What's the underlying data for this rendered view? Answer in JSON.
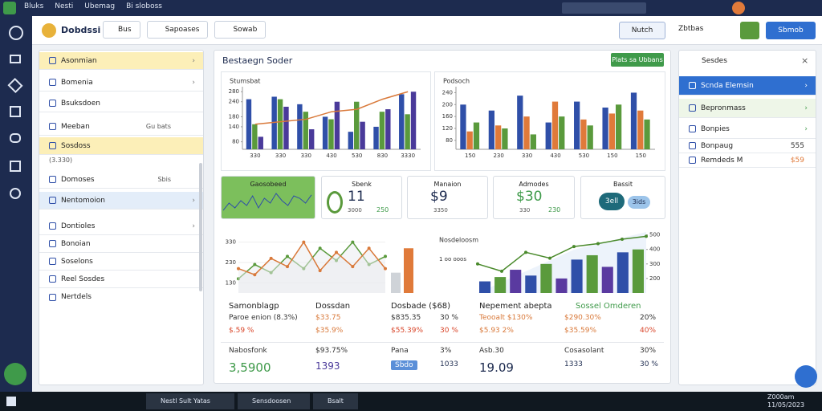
{
  "top_bar": {
    "items": [
      "Bluks",
      "Nesti",
      "Ubemag",
      "Bi sloboss"
    ]
  },
  "toolbar": {
    "brand": "Dobdssi",
    "tabs": [
      "Bus",
      "Sapoases",
      "Sowab"
    ],
    "button": "Nutch",
    "link": "Zbtbas",
    "action": "Sbmob"
  },
  "left_panel": {
    "items": [
      {
        "label": "Asonmian",
        "highlight": "#fcefb8"
      },
      {
        "label": "Bomenia"
      },
      {
        "label": "Bsuksdoen"
      },
      {
        "label": "Meeban",
        "badge": "Gu bats"
      },
      {
        "label": "Sosdoss",
        "badge": "(3.330)",
        "highlight": "#fcefb8"
      },
      {
        "label": "Domoses",
        "badge": "Sbis"
      },
      {
        "label": "Nentomoion",
        "highlight": "#e3edf9"
      },
      {
        "label": "Dontioles"
      },
      {
        "label": "Bonoian"
      },
      {
        "label": "Soselons"
      },
      {
        "label": "Reel Sosdes"
      },
      {
        "label": "Nertdels"
      }
    ]
  },
  "main": {
    "title": "Bestaegn Soder",
    "button": "Plats sa Ubbans"
  },
  "charts": [
    {
      "type": "bar",
      "title": "Stumsbat",
      "ylim": [
        50,
        300
      ],
      "yticks": [
        80,
        140,
        180,
        240,
        280
      ],
      "categories": [
        "330",
        "330",
        "330",
        "430",
        "530",
        "830",
        "3330"
      ],
      "series": [
        {
          "color": "#2f4fa8",
          "values": [
            250,
            260,
            230,
            180,
            120,
            140,
            270
          ]
        },
        {
          "color": "#5a9a3c",
          "values": [
            150,
            250,
            200,
            170,
            240,
            200,
            190
          ]
        },
        {
          "color": "#4a3a9a",
          "values": [
            100,
            220,
            130,
            240,
            160,
            210,
            280
          ]
        }
      ],
      "line": {
        "color": "#d9793a",
        "values": [
          150,
          160,
          170,
          200,
          210,
          250,
          280
        ]
      }
    },
    {
      "type": "bar",
      "title": "Podsoch",
      "ylim": [
        50,
        260
      ],
      "yticks": [
        80,
        120,
        160,
        200,
        240
      ],
      "categories": [
        "150",
        "230",
        "330",
        "430",
        "530",
        "150",
        "150"
      ],
      "series": [
        {
          "color": "#2f4fa8",
          "values": [
            200,
            180,
            230,
            140,
            210,
            190,
            240
          ]
        },
        {
          "color": "#e07a3a",
          "values": [
            110,
            130,
            160,
            210,
            150,
            170,
            180
          ]
        },
        {
          "color": "#5a9a3c",
          "values": [
            140,
            120,
            100,
            160,
            130,
            200,
            150
          ]
        }
      ]
    }
  ],
  "kpis": [
    {
      "title": "Gaosobeed",
      "spark": [
        40,
        55,
        45,
        60,
        50,
        70,
        45,
        65,
        55,
        75,
        60,
        50,
        70,
        65,
        55,
        72
      ],
      "ylim": [
        30,
        80
      ]
    },
    {
      "title": "Sbenk",
      "value": "11",
      "sub": "3000",
      "side": "250"
    },
    {
      "title": "Manaion",
      "value": "$9",
      "sub": "3350"
    },
    {
      "title": "Admodes",
      "value": "$30",
      "sub": "330",
      "side": "230"
    },
    {
      "title": "Bassit",
      "value": "3ell",
      "sub": "3ids"
    }
  ],
  "trend": {
    "type": "line",
    "left": {
      "ylim": [
        80,
        380
      ],
      "yticks": [
        130,
        230,
        330
      ],
      "series": [
        {
          "color": "#5a9a3c",
          "values": [
            150,
            220,
            180,
            260,
            200,
            300,
            240,
            330,
            220,
            260
          ]
        },
        {
          "color": "#d9793a",
          "values": [
            200,
            170,
            250,
            210,
            330,
            190,
            280,
            210,
            300,
            200
          ]
        }
      ],
      "bars": [
        {
          "color": "#cfd3d8",
          "values": [
            180
          ]
        },
        {
          "color": "#e07a3a",
          "values": [
            300
          ]
        }
      ]
    },
    "right": {
      "title": "Nosdeloosm",
      "subtitle": "1 oo ooos",
      "ylim": [
        100,
        520
      ],
      "yticks": [
        200,
        300,
        400,
        500
      ],
      "bars": {
        "colors": [
          "#2f4fa8",
          "#5a9a3c",
          "#5a3aa0"
        ],
        "values": [
          180,
          210,
          260,
          220,
          300,
          200,
          330,
          360,
          280,
          380,
          400
        ]
      },
      "line": {
        "color": "#4a8a2c",
        "values": [
          300,
          250,
          380,
          340,
          420,
          440,
          470,
          490
        ]
      }
    }
  },
  "table": {
    "headers": [
      "Samonblagp",
      "Dossdan",
      "Dosbade ($68)",
      "Nepement abepta",
      "Sossel Omderen"
    ],
    "rows": [
      [
        "Paroe enion (8.3%)",
        "$33.75",
        "$835.35",
        "30 %",
        "Teooalt $130%",
        "$290.30%",
        "20%"
      ],
      [
        "$.59 %",
        "$35.9%",
        "$55.39%",
        "30 %",
        "$5.93 2%",
        "$35.59%",
        "40%"
      ],
      [
        "Nabosfonk",
        "$93.75%",
        "Pana",
        "3%",
        "Asb.30",
        "Cosasolant",
        "30%"
      ],
      [
        "3,5900",
        "1393",
        "Sbdo",
        "1033",
        "19.09",
        "1333",
        "30 %"
      ]
    ]
  },
  "right_panel": {
    "title": "Sesdes",
    "items": [
      {
        "label": "Scnda Elemsin",
        "highlight": "#2f6fd0"
      },
      {
        "label": "Bepronmass",
        "highlight": "#eef6e8"
      },
      {
        "label": "Bonpies"
      },
      {
        "label": "Bonpaug",
        "value": "555"
      },
      {
        "label": "Remdeds M",
        "value": "$59"
      }
    ]
  },
  "taskbar": {
    "apps": [
      "Nestl Sult Yatas",
      "Sensdoosen",
      "Bsalt"
    ],
    "time": "Z000am",
    "date": "11/05/2023"
  }
}
